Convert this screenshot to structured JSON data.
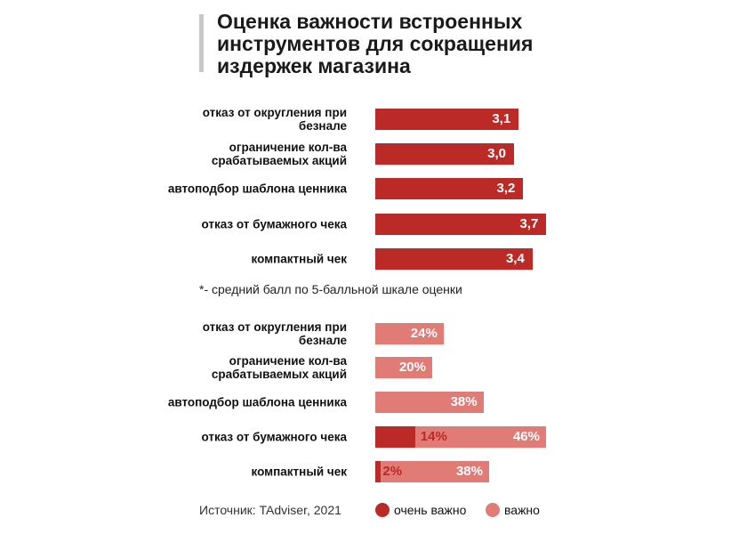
{
  "chart_data": [
    {
      "type": "bar",
      "orientation": "horizontal",
      "title": "Оценка важности встроенных инструментов для сокращения издержек магазина",
      "categories": [
        "отказ от округления при безнале",
        "ограничение кол-ва срабатываемых акций",
        "автоподбор шаблона ценника",
        "отказ от бумажного чека",
        "компактный чек"
      ],
      "values": [
        3.1,
        3.0,
        3.2,
        3.7,
        3.4
      ],
      "value_labels": [
        "3,1",
        "3,0",
        "3,2",
        "3,7",
        "3,4"
      ],
      "footnote": "*- средний балл по 5-балльной шкале оценки",
      "color": "#bb2a26"
    },
    {
      "type": "bar",
      "orientation": "horizontal",
      "stacked": true,
      "categories": [
        "отказ от округления при безнале",
        "ограничение кол-ва срабатываемых акций",
        "автоподбор шаблона ценника",
        "отказ от бумажного чека",
        "компактный чек"
      ],
      "series": [
        {
          "name": "очень важно",
          "values": [
            0,
            0,
            0,
            14,
            2
          ],
          "color": "#bb2a26"
        },
        {
          "name": "важно",
          "values": [
            24,
            20,
            38,
            46,
            38
          ],
          "color": "#e07b76"
        }
      ],
      "legend": "bottom-right",
      "source": "Источник: TAdviser, 2021"
    }
  ]
}
